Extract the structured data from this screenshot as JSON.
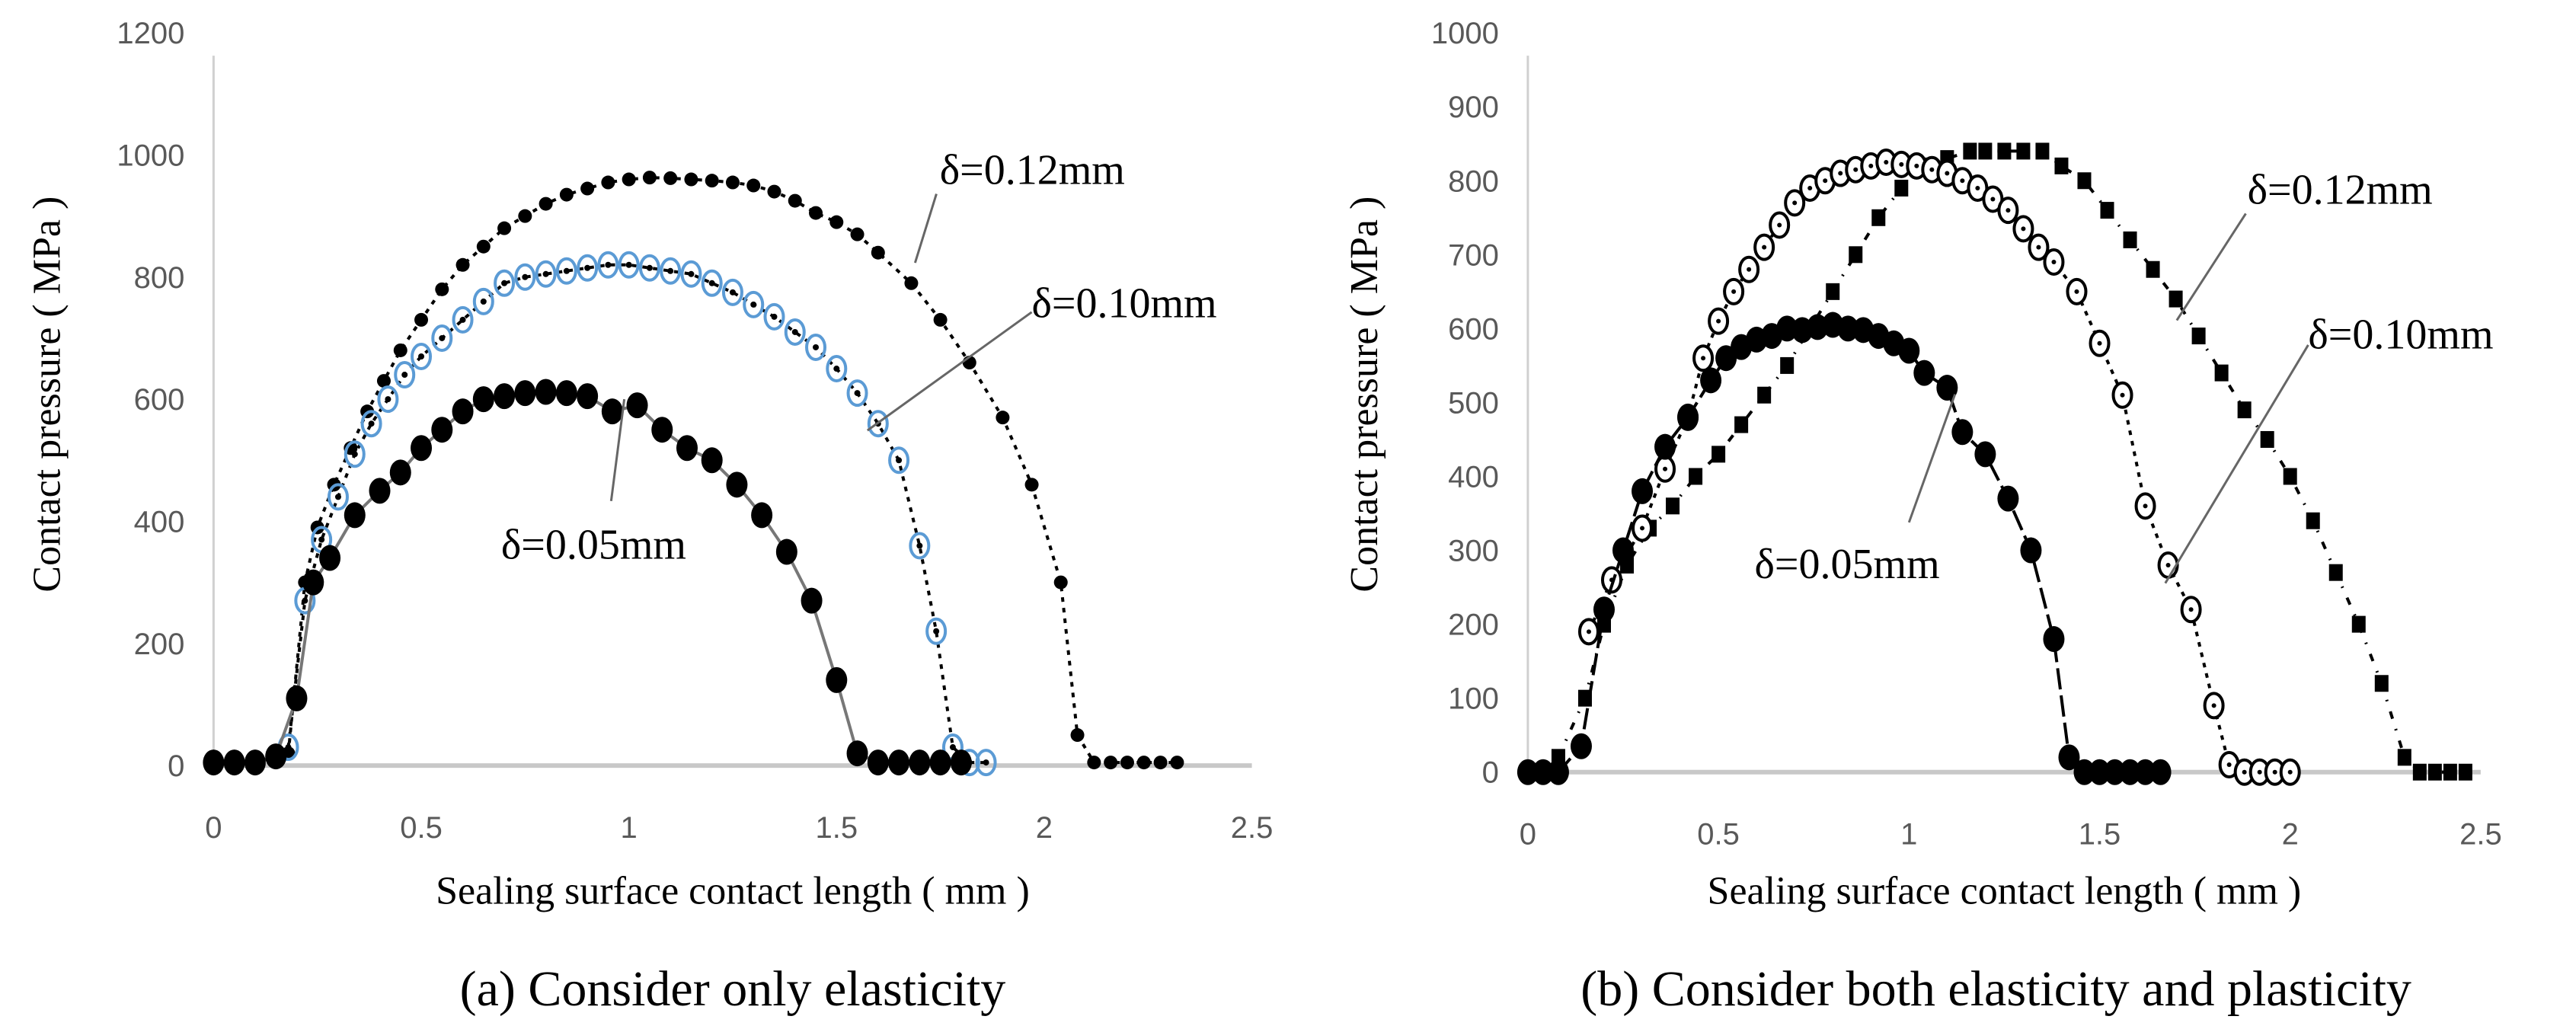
{
  "chart_data": [
    {
      "type": "line",
      "caption": "(a) Consider only elasticity",
      "xlabel": "Sealing surface contact length ( mm )",
      "ylabel": "Contact pressure ( MPa )",
      "xlim": [
        0,
        2.5
      ],
      "ylim": [
        0,
        1200
      ],
      "xticks": [
        "0",
        "0.5",
        "1",
        "1.5",
        "2",
        "2.5"
      ],
      "xtick_values": [
        0,
        0.5,
        1,
        1.5,
        2,
        2.5
      ],
      "yticks": [
        "0",
        "200",
        "400",
        "600",
        "800",
        "1000",
        "1200"
      ],
      "ytick_values": [
        0,
        200,
        400,
        600,
        800,
        1000,
        1200
      ],
      "grid": false,
      "series": [
        {
          "name": "δ=0.12mm",
          "marker": "dot-small",
          "color": "#000000",
          "x": [
            0.18,
            0.22,
            0.25,
            0.29,
            0.33,
            0.37,
            0.41,
            0.45,
            0.5,
            0.55,
            0.6,
            0.65,
            0.7,
            0.75,
            0.8,
            0.85,
            0.9,
            0.95,
            1.0,
            1.05,
            1.1,
            1.15,
            1.2,
            1.25,
            1.3,
            1.35,
            1.4,
            1.45,
            1.5,
            1.55,
            1.6,
            1.68,
            1.75,
            1.82,
            1.9,
            1.97,
            2.04,
            2.08,
            2.12,
            2.16,
            2.2,
            2.24,
            2.28,
            2.32
          ],
          "y": [
            20,
            300,
            390,
            460,
            520,
            580,
            630,
            680,
            730,
            780,
            820,
            850,
            880,
            900,
            920,
            935,
            945,
            955,
            960,
            963,
            962,
            960,
            958,
            955,
            950,
            940,
            925,
            905,
            890,
            870,
            840,
            790,
            730,
            660,
            570,
            460,
            300,
            50,
            5,
            5,
            5,
            5,
            5,
            5
          ]
        },
        {
          "name": "δ=0.10mm",
          "marker": "circle-open-blue",
          "color": "#5b9bd5",
          "x": [
            0.18,
            0.22,
            0.26,
            0.3,
            0.34,
            0.38,
            0.42,
            0.46,
            0.5,
            0.55,
            0.6,
            0.65,
            0.7,
            0.75,
            0.8,
            0.85,
            0.9,
            0.95,
            1.0,
            1.05,
            1.1,
            1.15,
            1.2,
            1.25,
            1.3,
            1.35,
            1.4,
            1.45,
            1.5,
            1.55,
            1.6,
            1.65,
            1.7,
            1.74,
            1.78,
            1.82,
            1.86
          ],
          "y": [
            30,
            270,
            370,
            440,
            510,
            560,
            600,
            640,
            670,
            700,
            730,
            760,
            790,
            800,
            805,
            810,
            815,
            820,
            820,
            815,
            810,
            805,
            790,
            775,
            755,
            735,
            710,
            685,
            650,
            610,
            560,
            500,
            360,
            220,
            30,
            5,
            5
          ]
        },
        {
          "name": "δ=0.05mm",
          "marker": "dot-large",
          "color": "#000000",
          "x": [
            0,
            0.05,
            0.1,
            0.15,
            0.2,
            0.24,
            0.28,
            0.34,
            0.4,
            0.45,
            0.5,
            0.55,
            0.6,
            0.65,
            0.7,
            0.75,
            0.8,
            0.85,
            0.9,
            0.96,
            1.02,
            1.08,
            1.14,
            1.2,
            1.26,
            1.32,
            1.38,
            1.44,
            1.5,
            1.55,
            1.6,
            1.65,
            1.7,
            1.75,
            1.8
          ],
          "y": [
            5,
            5,
            5,
            15,
            110,
            300,
            340,
            410,
            450,
            480,
            520,
            550,
            580,
            600,
            605,
            610,
            612,
            610,
            605,
            580,
            590,
            550,
            520,
            500,
            460,
            410,
            350,
            270,
            140,
            20,
            5,
            5,
            5,
            5,
            5
          ]
        }
      ],
      "annotations": [
        "δ=0.12mm",
        "δ=0.10mm",
        "δ=0.05mm"
      ]
    },
    {
      "type": "line",
      "caption": "(b) Consider both elasticity and plasticity",
      "xlabel": "Sealing surface contact length ( mm )",
      "ylabel": "Contact pressure ( MPa )",
      "xlim": [
        0,
        2.5
      ],
      "ylim": [
        0,
        1000
      ],
      "xticks": [
        "0",
        "0.5",
        "1",
        "1.5",
        "2",
        "2.5"
      ],
      "xtick_values": [
        0,
        0.5,
        1,
        1.5,
        2,
        2.5
      ],
      "yticks": [
        "0",
        "100",
        "200",
        "300",
        "400",
        "500",
        "600",
        "700",
        "800",
        "900",
        "1000"
      ],
      "ytick_values": [
        0,
        100,
        200,
        300,
        400,
        500,
        600,
        700,
        800,
        900,
        1000
      ],
      "grid": false,
      "series": [
        {
          "name": "δ=0.12mm",
          "marker": "square",
          "color": "#000000",
          "x": [
            0.08,
            0.15,
            0.2,
            0.26,
            0.32,
            0.38,
            0.44,
            0.5,
            0.56,
            0.62,
            0.68,
            0.74,
            0.8,
            0.86,
            0.92,
            0.98,
            1.04,
            1.1,
            1.16,
            1.2,
            1.25,
            1.3,
            1.35,
            1.4,
            1.46,
            1.52,
            1.58,
            1.64,
            1.7,
            1.76,
            1.82,
            1.88,
            1.94,
            2.0,
            2.06,
            2.12,
            2.18,
            2.24,
            2.3,
            2.34,
            2.38,
            2.42,
            2.46
          ],
          "y": [
            20,
            100,
            200,
            280,
            330,
            360,
            400,
            430,
            470,
            510,
            550,
            600,
            650,
            700,
            750,
            790,
            820,
            830,
            840,
            840,
            840,
            840,
            840,
            820,
            800,
            760,
            720,
            680,
            640,
            590,
            540,
            490,
            450,
            400,
            340,
            270,
            200,
            120,
            20,
            0,
            0,
            0,
            0
          ]
        },
        {
          "name": "δ=0.10mm",
          "marker": "circle-dot",
          "color": "#000000",
          "x": [
            0.16,
            0.22,
            0.3,
            0.36,
            0.42,
            0.46,
            0.5,
            0.54,
            0.58,
            0.62,
            0.66,
            0.7,
            0.74,
            0.78,
            0.82,
            0.86,
            0.9,
            0.94,
            0.98,
            1.02,
            1.06,
            1.1,
            1.14,
            1.18,
            1.22,
            1.26,
            1.3,
            1.34,
            1.38,
            1.44,
            1.5,
            1.56,
            1.62,
            1.68,
            1.74,
            1.8,
            1.84,
            1.88,
            1.92,
            1.96,
            2.0
          ],
          "y": [
            190,
            260,
            330,
            410,
            480,
            560,
            610,
            650,
            680,
            710,
            740,
            770,
            790,
            800,
            810,
            815,
            820,
            825,
            822,
            820,
            815,
            810,
            800,
            790,
            775,
            760,
            735,
            710,
            690,
            650,
            580,
            510,
            360,
            280,
            220,
            90,
            10,
            0,
            0,
            0,
            0
          ]
        },
        {
          "name": "δ=0.05mm",
          "marker": "dot-large",
          "color": "#000000",
          "x": [
            0,
            0.04,
            0.08,
            0.14,
            0.2,
            0.25,
            0.3,
            0.36,
            0.42,
            0.48,
            0.52,
            0.56,
            0.6,
            0.64,
            0.68,
            0.72,
            0.76,
            0.8,
            0.84,
            0.88,
            0.92,
            0.96,
            1.0,
            1.04,
            1.1,
            1.14,
            1.2,
            1.26,
            1.32,
            1.38,
            1.42,
            1.46,
            1.5,
            1.54,
            1.58,
            1.62,
            1.66
          ],
          "y": [
            0,
            0,
            0,
            35,
            220,
            300,
            380,
            440,
            480,
            530,
            560,
            575,
            585,
            590,
            600,
            598,
            602,
            605,
            600,
            598,
            590,
            580,
            570,
            540,
            520,
            460,
            430,
            370,
            300,
            180,
            20,
            0,
            0,
            0,
            0,
            0,
            0
          ]
        }
      ],
      "annotations": [
        "δ=0.12mm",
        "δ=0.10mm",
        "δ=0.05mm"
      ]
    }
  ]
}
